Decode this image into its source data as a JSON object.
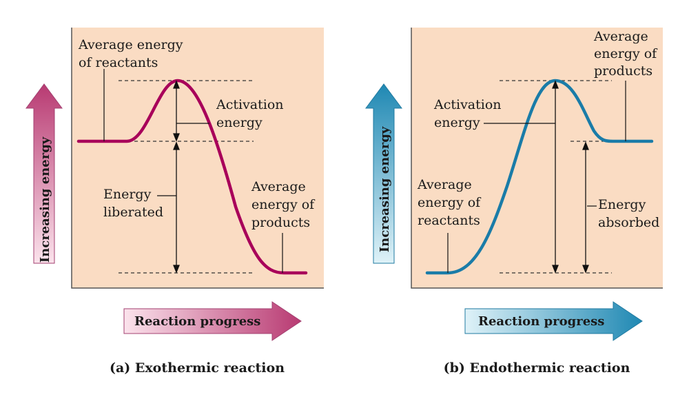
{
  "colors": {
    "panel_bg": "#fadcc3",
    "exo_curve": "#a8005a",
    "endo_curve": "#1a7ca8",
    "exo_arrow_dark": "#b83a72",
    "exo_arrow_light": "#fbe0ea",
    "endo_arrow_dark": "#1f88b3",
    "endo_arrow_light": "#d7eef6"
  },
  "exothermic": {
    "caption": "(a) Exothermic reaction",
    "y_axis": "Increasing energy",
    "x_axis": "Reaction progress",
    "reactants_label": [
      "Average energy",
      "of reactants"
    ],
    "activation_label": [
      "Activation",
      "energy"
    ],
    "liberated_label": [
      "Energy",
      "liberated"
    ],
    "products_label": [
      "Average",
      "energy of",
      "products"
    ]
  },
  "endothermic": {
    "caption": "(b) Endothermic reaction",
    "y_axis": "Increasing energy",
    "x_axis": "Reaction progress",
    "products_label": [
      "Average",
      "energy of",
      "products"
    ],
    "activation_label": [
      "Activation",
      "energy"
    ],
    "reactants_label": [
      "Average",
      "energy of",
      "reactants"
    ],
    "absorbed_label": [
      "Energy",
      "absorbed"
    ]
  }
}
